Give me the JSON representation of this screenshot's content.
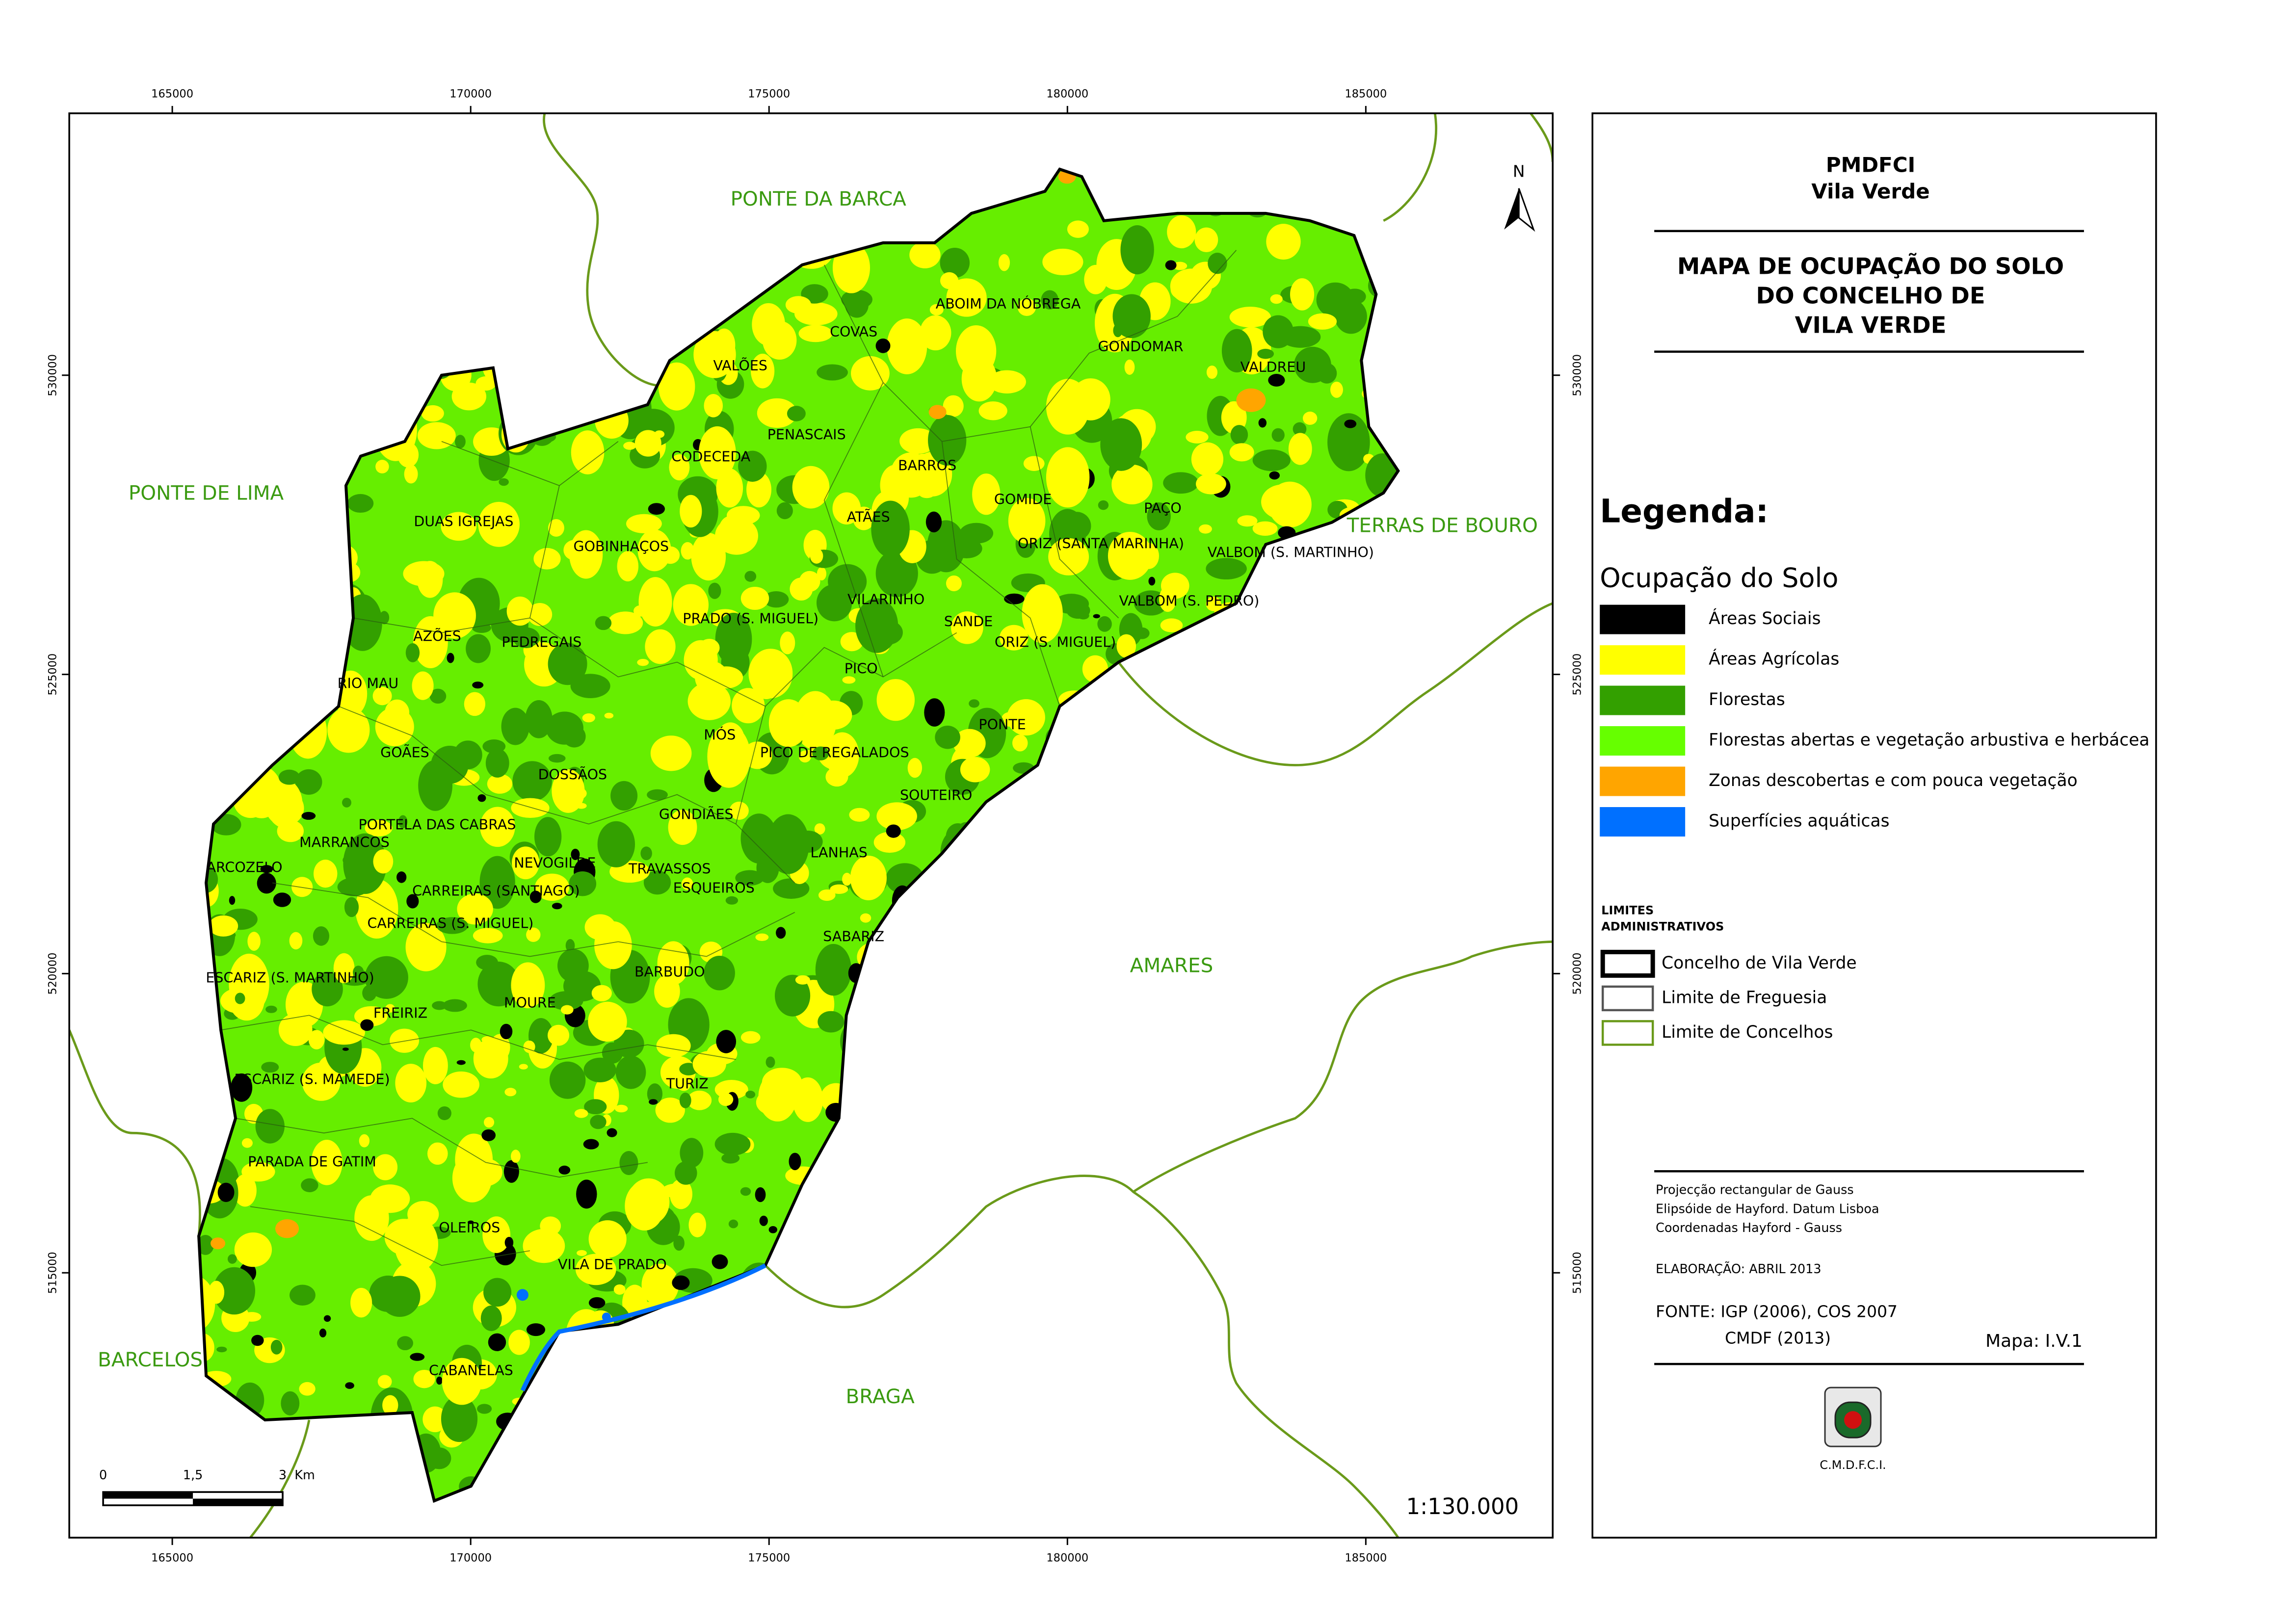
{
  "map": {
    "x_ticks": [
      165000,
      170000,
      175000,
      180000,
      185000
    ],
    "y_ticks": [
      530000,
      525000,
      520000,
      515000
    ],
    "neighbors": [
      "PONTE DA BARCA",
      "PONTE DE LIMA",
      "TERRAS DE BOURO",
      "AMARES",
      "BARCELOS",
      "BRAGA"
    ],
    "parishes": [
      "ABOIM DA NÓBREGA",
      "COVAS",
      "GONDOMAR",
      "VALDREU",
      "VALÕES",
      "PENASCAIS",
      "CODECEDA",
      "BARROS",
      "DUAS IGREJAS",
      "GOMIDE",
      "ATÃES",
      "PAÇO",
      "ORIZ (SANTA MARINHA)",
      "VALBOM (S. MARTINHO)",
      "GOBINHAÇOS",
      "VILARINHO",
      "VALBOM (S. PEDRO)",
      "PRADO (S. MIGUEL)",
      "SANDE",
      "AZÕES",
      "PEDREGAIS",
      "ORIZ (S. MIGUEL)",
      "PICO",
      "RIO MAU",
      "MÓS",
      "PONTE",
      "PICO DE REGALADOS",
      "GOÃES",
      "DOSSÃOS",
      "SOUTEIRO",
      "GONDIÃES",
      "PORTELA DAS CABRAS",
      "MARRANCOS",
      "LANHAS",
      "NEVOGILDE",
      "TRAVASSOS",
      "ARCOZELO",
      "CARREIRAS (SANTIAGO)",
      "ESQUEIROS",
      "CARREIRAS (S. MIGUEL)",
      "SABARIZ",
      "ESCARIZ (S. MARTINHO)",
      "BARBUDO",
      "FREIRIZ",
      "MOURE",
      "TURIZ",
      "ESCARIZ (S. MAMEDE)",
      "PARADA DE GATIM",
      "OLEIROS",
      "VILA DE PRADO",
      "CABANELAS"
    ],
    "north": "N",
    "scale_bar_labels": [
      "0",
      "1,5",
      "3",
      "Km"
    ],
    "scale": "1:130.000"
  },
  "panel": {
    "header": [
      "PMDFCI",
      "Vila Verde"
    ],
    "title": [
      "MAPA DE OCUPAÇÃO DO SOLO",
      "DO CONCELHO DE",
      "VILA VERDE"
    ],
    "legend_heading": "Legenda:",
    "land_use_heading": "Ocupação do Solo",
    "land_use": [
      {
        "label": "Áreas Sociais",
        "color": "#000000"
      },
      {
        "label": "Áreas Agrícolas",
        "color": "#ffff00"
      },
      {
        "label": "Florestas",
        "color": "#33a000"
      },
      {
        "label": "Florestas abertas e vegetação arbustiva e herbácea",
        "color": "#66ff00"
      },
      {
        "label": "Zonas descobertas e com pouca vegetação",
        "color": "#ffa500"
      },
      {
        "label": "Superfícies aquáticas",
        "color": "#0070ff"
      }
    ],
    "limits_heading": [
      "LIMITES",
      "ADMINISTRATIVOS"
    ],
    "limits": [
      {
        "label": "Concelho de Vila Verde",
        "color": "#000000"
      },
      {
        "label": "Limite de Freguesia",
        "color": "#555555"
      },
      {
        "label": "Limite de Concelhos",
        "color": "#6a9a1a"
      }
    ],
    "notes": [
      "Projecção rectangular de Gauss",
      "Elipsóide de Hayford. Datum Lisboa",
      "Coordenadas Hayford - Gauss"
    ],
    "elaboration": "ELABORAÇÃO: ABRIL 2013",
    "source": [
      "FONTE: IGP (2006), COS 2007",
      "CMDF (2013)"
    ],
    "map_id": "Mapa: I.V.1",
    "emblem": "C.M.D.F.C.I."
  }
}
